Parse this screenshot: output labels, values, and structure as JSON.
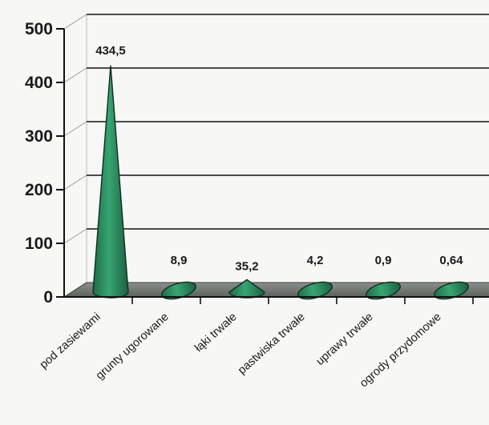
{
  "chart_data": {
    "type": "bar",
    "bar_shape": "cone",
    "categories": [
      "pod zasiewami",
      "grunty ugorowane",
      "łąki trwałe",
      "pastwiska trwałe",
      "uprawy trwałe",
      "ogrody przydomowe"
    ],
    "values": [
      434.5,
      8.9,
      35.2,
      4.2,
      0.9,
      0.64
    ],
    "data_labels": [
      "434,5",
      "8,9",
      "35,2",
      "4,2",
      "0,9",
      "0,64"
    ],
    "y_ticks": [
      "0",
      "100",
      "200",
      "300",
      "400",
      "500"
    ],
    "ylim": [
      0,
      500
    ],
    "grid": true,
    "legend": "none",
    "colors": {
      "bar": "#2e8b5f",
      "bar_dark": "#1d5f40",
      "floor": "#6f7472",
      "grid": "#111111"
    }
  }
}
